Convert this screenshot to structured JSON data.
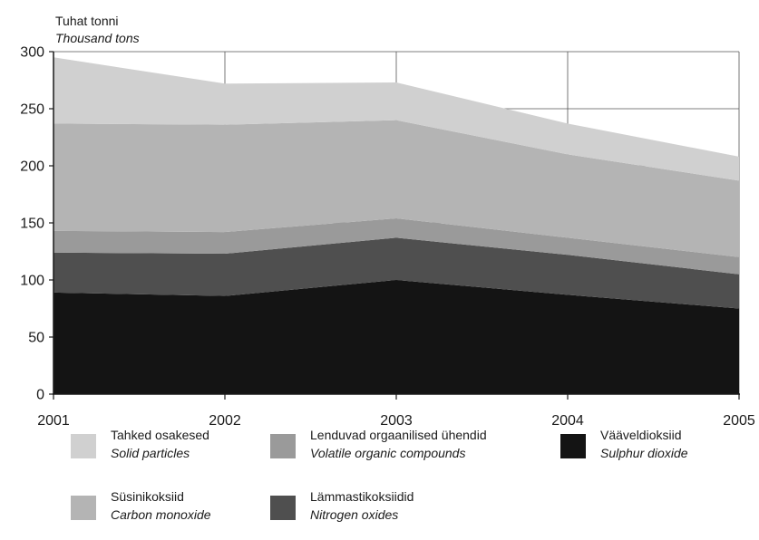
{
  "chart_data": {
    "type": "area",
    "stacked": true,
    "ylabel": "Tuhat tonni",
    "ylabel_en": "Thousand tons",
    "x": [
      "2001",
      "2002",
      "2003",
      "2004",
      "2005"
    ],
    "ylim": [
      0,
      300
    ],
    "yticks": [
      "0",
      "50",
      "100",
      "150",
      "200",
      "250",
      "300"
    ],
    "grid": true,
    "legend_position": "bottom",
    "series": [
      {
        "name": "Vääveldioksiid",
        "name_en": "Sulphur dioxide",
        "color": "#141414",
        "values": [
          89,
          86,
          100,
          87,
          75
        ]
      },
      {
        "name": "Lämmastikoksiidid",
        "name_en": "Nitrogen oxides",
        "color": "#4f4f4f",
        "values": [
          35,
          37,
          37,
          35,
          30
        ]
      },
      {
        "name": "Lenduvad orgaanilised ühendid",
        "name_en": "Volatile organic compounds",
        "color": "#9a9a9a",
        "values": [
          19,
          19,
          17,
          15,
          15
        ]
      },
      {
        "name": "Süsinikoksiid",
        "name_en": "Carbon monoxide",
        "color": "#b4b4b4",
        "values": [
          94,
          94,
          86,
          73,
          67
        ]
      },
      {
        "name": "Tahked osakesed",
        "name_en": "Solid particles",
        "color": "#d0d0d0",
        "values": [
          58,
          36,
          33,
          27,
          21
        ]
      }
    ]
  },
  "legend": [
    {
      "key": "solid",
      "label": "Tahked osakesed",
      "label_en": "Solid particles",
      "color": "#d0d0d0"
    },
    {
      "key": "voc",
      "label": "Lenduvad orgaanilised ühendid",
      "label_en": "Volatile organic compounds",
      "color": "#9a9a9a"
    },
    {
      "key": "so2",
      "label": "Vääveldioksiid",
      "label_en": "Sulphur dioxide",
      "color": "#141414"
    },
    {
      "key": "co",
      "label": "Süsinikoksiid",
      "label_en": "Carbon monoxide",
      "color": "#b4b4b4"
    },
    {
      "key": "nox",
      "label": "Lämmastikoksiidid",
      "label_en": "Nitrogen oxides",
      "color": "#4f4f4f"
    }
  ]
}
